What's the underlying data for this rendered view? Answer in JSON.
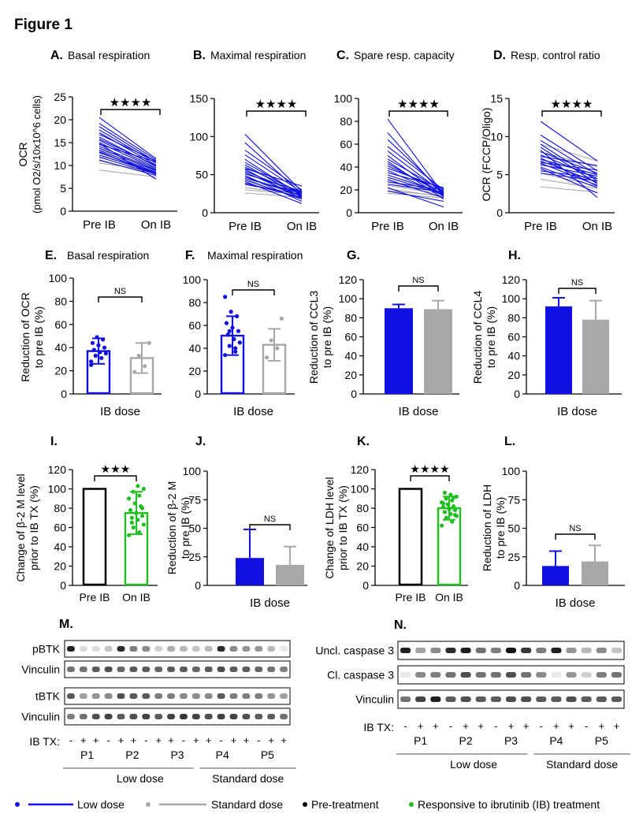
{
  "figure_title": "Figure 1",
  "colors": {
    "low": "#1010e0",
    "standard": "#a8a8a8",
    "black": "#000000",
    "green": "#1fbf1f"
  },
  "chart_data": [
    {
      "panel": "A.",
      "title": "Basal respiration",
      "type": "line",
      "ylabel_line1": "OCR",
      "ylabel_line2": "(pmol O2/s/10x10^6 cells)",
      "ticks": [
        "0",
        "5",
        "10",
        "15",
        "20",
        "25"
      ],
      "ylim": [
        0,
        25
      ],
      "categories": [
        "Pre IB",
        "On IB"
      ],
      "sig": "★★★★",
      "low": [
        [
          20.5,
          11.5
        ],
        [
          19.2,
          11.2
        ],
        [
          18.5,
          10.8
        ],
        [
          17.8,
          10.5
        ],
        [
          17.2,
          10.1
        ],
        [
          16.8,
          11.0
        ],
        [
          16.2,
          9.8
        ],
        [
          15.8,
          10.0
        ],
        [
          15.5,
          9.5
        ],
        [
          15.0,
          9.2
        ],
        [
          14.6,
          10.8
        ],
        [
          14.2,
          9.0
        ],
        [
          13.8,
          8.8
        ],
        [
          13.3,
          8.5
        ],
        [
          12.8,
          8.4
        ],
        [
          12.3,
          8.3
        ],
        [
          11.8,
          8.1
        ],
        [
          11.2,
          7.8
        ],
        [
          14.8,
          7.0
        ],
        [
          13.0,
          8.0
        ]
      ],
      "standard": [
        [
          9.0,
          7.5
        ],
        [
          10.5,
          8.8
        ],
        [
          12.0,
          9.2
        ],
        [
          13.5,
          9.5
        ],
        [
          11.0,
          8.2
        ]
      ]
    },
    {
      "panel": "B.",
      "title": "Maximal respiration",
      "type": "line",
      "ticks": [
        "0",
        "50",
        "100",
        "150"
      ],
      "ylim": [
        0,
        150
      ],
      "categories": [
        "Pre IB",
        "On IB"
      ],
      "sig": "★★★★",
      "low": [
        [
          103,
          28
        ],
        [
          92,
          25
        ],
        [
          82,
          30
        ],
        [
          76,
          27
        ],
        [
          70,
          22
        ],
        [
          66,
          24
        ],
        [
          63,
          20
        ],
        [
          60,
          26
        ],
        [
          57,
          18
        ],
        [
          55,
          24
        ],
        [
          53,
          21
        ],
        [
          51,
          28
        ],
        [
          49,
          15
        ],
        [
          47,
          22
        ],
        [
          45,
          26
        ],
        [
          43,
          18
        ],
        [
          41,
          12
        ],
        [
          39,
          20
        ],
        [
          37,
          24
        ],
        [
          58,
          35
        ]
      ],
      "standard": [
        [
          43,
          25
        ],
        [
          33,
          23
        ],
        [
          26,
          20
        ],
        [
          30,
          24
        ],
        [
          38,
          23
        ]
      ]
    },
    {
      "panel": "C.",
      "title": "Spare resp. capacity",
      "type": "line",
      "ticks": [
        "0",
        "20",
        "40",
        "60",
        "80",
        "100"
      ],
      "ylim": [
        0,
        100
      ],
      "categories": [
        "Pre IB",
        "On IB"
      ],
      "sig": "★★★★",
      "low": [
        [
          82,
          16
        ],
        [
          70,
          15
        ],
        [
          64,
          18
        ],
        [
          58,
          20
        ],
        [
          54,
          17
        ],
        [
          50,
          14
        ],
        [
          47,
          19
        ],
        [
          45,
          12
        ],
        [
          43,
          16
        ],
        [
          41,
          18
        ],
        [
          39,
          21
        ],
        [
          37,
          15
        ],
        [
          35,
          22
        ],
        [
          33,
          17
        ],
        [
          31,
          16
        ],
        [
          29,
          13
        ],
        [
          27,
          20
        ],
        [
          25,
          18
        ],
        [
          22,
          5
        ],
        [
          19,
          10
        ]
      ],
      "standard": [
        [
          19,
          15
        ],
        [
          21,
          14
        ],
        [
          17,
          13
        ],
        [
          24,
          16
        ],
        [
          27,
          17
        ]
      ]
    },
    {
      "panel": "D.",
      "title": "Resp. control ratio",
      "type": "line",
      "ylabel_line1": "OCR (FCCP/Oligo)",
      "ticks": [
        "0",
        "5",
        "10",
        "15"
      ],
      "ylim": [
        0,
        15
      ],
      "categories": [
        "Pre IB",
        "On IB"
      ],
      "sig": "★★★★",
      "low": [
        [
          12.0,
          6.8
        ],
        [
          10.2,
          5.5
        ],
        [
          9.5,
          5.0
        ],
        [
          9.0,
          4.2
        ],
        [
          8.6,
          3.8
        ],
        [
          8.2,
          2.0
        ],
        [
          8.0,
          5.2
        ],
        [
          7.6,
          4.5
        ],
        [
          7.2,
          3.5
        ],
        [
          7.0,
          5.0
        ],
        [
          6.8,
          4.0
        ],
        [
          6.5,
          3.6
        ],
        [
          6.3,
          4.8
        ],
        [
          6.0,
          3.3
        ],
        [
          5.8,
          2.6
        ],
        [
          5.5,
          4.5
        ],
        [
          7.4,
          6.2
        ],
        [
          6.6,
          5.6
        ],
        [
          5.2,
          4.2
        ]
      ],
      "standard": [
        [
          3.4,
          2.7
        ],
        [
          4.4,
          3.2
        ],
        [
          5.2,
          3.5
        ],
        [
          8.0,
          6.0
        ],
        [
          9.0,
          6.8
        ]
      ]
    },
    {
      "panel": "E.",
      "title": "Basal respiration",
      "type": "bar",
      "ylabel_line1": "Reduction of OCR",
      "ylabel_line2": "to pre IB (%)",
      "ticks": [
        "0",
        "20",
        "40",
        "60",
        "80",
        "100"
      ],
      "ylim": [
        0,
        100
      ],
      "xlabel": "IB dose",
      "sig": "NS",
      "bars": [
        {
          "group": "low",
          "value": 37,
          "err": 11,
          "filled": false,
          "points": [
            28,
            31,
            33,
            35,
            36,
            38,
            40,
            42,
            44,
            47,
            49,
            25
          ]
        },
        {
          "group": "standard",
          "value": 31,
          "err": 13,
          "filled": false,
          "points": [
            19,
            24,
            33,
            44
          ]
        }
      ]
    },
    {
      "panel": "F.",
      "title": "Maximal respiration",
      "type": "bar",
      "ticks": [
        "0",
        "20",
        "40",
        "60",
        "80",
        "100"
      ],
      "ylim": [
        0,
        100
      ],
      "xlabel": "IB dose",
      "sig": "NS",
      "bars": [
        {
          "group": "low",
          "value": 51,
          "err": 17,
          "filled": false,
          "points": [
            34,
            37,
            42,
            45,
            48,
            52,
            55,
            58,
            62,
            68,
            72,
            85,
            40,
            55
          ]
        },
        {
          "group": "standard",
          "value": 43,
          "err": 14,
          "filled": false,
          "points": [
            32,
            40,
            47,
            66
          ]
        }
      ]
    },
    {
      "panel": "G.",
      "title": "",
      "type": "bar",
      "ylabel_line1": "Reduction of CCL3",
      "ylabel_line2": "to pre IB (%)",
      "ticks": [
        "0",
        "20",
        "40",
        "60",
        "80",
        "100",
        "120"
      ],
      "ylim": [
        0,
        120
      ],
      "xlabel": "IB dose",
      "sig": "NS",
      "bars": [
        {
          "group": "low",
          "value": 90,
          "err": 4,
          "filled": true,
          "points": []
        },
        {
          "group": "standard",
          "value": 89,
          "err": 9,
          "filled": true,
          "points": []
        }
      ]
    },
    {
      "panel": "H.",
      "title": "",
      "type": "bar",
      "ylabel_line1": "Reduction of CCL4",
      "ylabel_line2": "to pre IB (%)",
      "ticks": [
        "0",
        "20",
        "40",
        "60",
        "80",
        "100",
        "120"
      ],
      "ylim": [
        0,
        120
      ],
      "xlabel": "IB dose",
      "sig": "NS",
      "bars": [
        {
          "group": "low",
          "value": 92,
          "err": 9,
          "filled": true,
          "points": []
        },
        {
          "group": "standard",
          "value": 78,
          "err": 20,
          "filled": true,
          "points": []
        }
      ]
    },
    {
      "panel": "I.",
      "title": "",
      "type": "bar",
      "ylabel_line1": "Change of β-2 M level",
      "ylabel_line2": "prior to IB TX (%)",
      "ticks": [
        "0",
        "20",
        "40",
        "60",
        "80",
        "100",
        "120"
      ],
      "ylim": [
        0,
        120
      ],
      "xlabel": "",
      "categories": [
        "Pre IB",
        "On IB"
      ],
      "sig": "★★★",
      "bars": [
        {
          "group": "black",
          "value": 100,
          "err": 0,
          "filled": false,
          "points": []
        },
        {
          "group": "green",
          "value": 75,
          "err": 22,
          "filled": false,
          "points": [
            52,
            55,
            60,
            63,
            68,
            70,
            72,
            75,
            78,
            82,
            85,
            90,
            93,
            97,
            100,
            103,
            65,
            80
          ]
        }
      ]
    },
    {
      "panel": "J.",
      "title": "",
      "type": "bar",
      "ylabel_line1": "Reduction of β-2 M",
      "ylabel_line2": "to pre IB (%)",
      "ticks": [
        "0",
        "25",
        "50",
        "75",
        "100"
      ],
      "ylim": [
        0,
        100
      ],
      "xlabel": "IB dose",
      "sig": "NS",
      "bars": [
        {
          "group": "low",
          "value": 24,
          "err": 25,
          "filled": true,
          "points": []
        },
        {
          "group": "standard",
          "value": 18,
          "err": 16,
          "filled": true,
          "points": []
        }
      ]
    },
    {
      "panel": "K.",
      "title": "",
      "type": "bar",
      "ylabel_line1": "Change of LDH level",
      "ylabel_line2": "prior to IB TX (%)",
      "ticks": [
        "0",
        "20",
        "40",
        "60",
        "80",
        "100",
        "120"
      ],
      "ylim": [
        0,
        120
      ],
      "xlabel": "",
      "categories": [
        "Pre IB",
        "On IB"
      ],
      "sig": "★★★★",
      "bars": [
        {
          "group": "black",
          "value": 100,
          "err": 0,
          "filled": false,
          "points": []
        },
        {
          "group": "green",
          "value": 80,
          "err": 12,
          "filled": false,
          "points": [
            62,
            66,
            70,
            72,
            74,
            76,
            78,
            80,
            81,
            82,
            84,
            86,
            88,
            90,
            92,
            94,
            96,
            73,
            79,
            85,
            91
          ]
        }
      ]
    },
    {
      "panel": "L.",
      "title": "",
      "type": "bar",
      "ylabel_line1": "Reduction of LDH",
      "ylabel_line2": "to pre IB (%)",
      "ticks": [
        "0",
        "25",
        "50",
        "75",
        "100"
      ],
      "ylim": [
        0,
        100
      ],
      "xlabel": "IB dose",
      "sig": "NS",
      "bars": [
        {
          "group": "low",
          "value": 17,
          "err": 13,
          "filled": true,
          "points": []
        },
        {
          "group": "standard",
          "value": 21,
          "err": 14,
          "filled": true,
          "points": []
        }
      ]
    }
  ],
  "blots": {
    "M": {
      "panel": "M.",
      "rows": [
        {
          "label": "pBTK",
          "intens": [
            0.95,
            0.15,
            0.15,
            0.25,
            0.9,
            0.55,
            0.5,
            0.2,
            0.35,
            0.3,
            0.25,
            0.3,
            0.9,
            0.5,
            0.45,
            0.45,
            0.3,
            0.1
          ]
        },
        {
          "label": "Vinculin",
          "intens": [
            0.6,
            0.6,
            0.7,
            0.75,
            0.65,
            0.7,
            0.7,
            0.65,
            0.7,
            0.7,
            0.65,
            0.7,
            0.75,
            0.7,
            0.7,
            0.65,
            0.6,
            0.55
          ]
        },
        {
          "label": "tBTK",
          "intens": [
            0.7,
            0.4,
            0.45,
            0.5,
            0.75,
            0.7,
            0.7,
            0.55,
            0.55,
            0.5,
            0.5,
            0.5,
            0.7,
            0.55,
            0.55,
            0.55,
            0.45,
            0.4
          ]
        },
        {
          "label": "Vinculin",
          "intens": [
            0.55,
            0.6,
            0.75,
            0.8,
            0.7,
            0.75,
            0.8,
            0.7,
            0.8,
            0.85,
            0.8,
            0.75,
            0.8,
            0.8,
            0.75,
            0.7,
            0.7,
            0.6
          ]
        }
      ],
      "tx_label": "IB TX:",
      "tx": [
        "-",
        "+",
        "+",
        "-",
        "+",
        "+",
        "-",
        "+",
        "+",
        "-",
        "+",
        "+",
        "-",
        "+",
        "+",
        "-",
        "+",
        "+"
      ],
      "patients": [
        "P1",
        "P2",
        "P3",
        "P4",
        "P5"
      ],
      "groups": [
        "Low dose",
        "Standard dose"
      ]
    },
    "N": {
      "panel": "N.",
      "rows": [
        {
          "label": "Uncl. caspase 3",
          "intens": [
            0.95,
            0.4,
            0.5,
            0.9,
            0.95,
            0.6,
            0.55,
            1.0,
            0.85,
            0.55,
            0.95,
            0.45,
            0.3,
            0.5,
            0.25
          ]
        },
        {
          "label": "Cl. caspase 3",
          "intens": [
            0.1,
            0.5,
            0.55,
            0.6,
            0.75,
            0.6,
            0.6,
            0.75,
            0.6,
            0.5,
            0.1,
            0.45,
            0.2,
            0.55,
            0.6
          ]
        },
        {
          "label": "Vinculin",
          "intens": [
            0.6,
            0.8,
            0.95,
            0.7,
            0.75,
            0.7,
            0.7,
            0.75,
            0.75,
            0.7,
            0.7,
            0.75,
            0.7,
            0.7,
            0.7
          ]
        }
      ],
      "tx_label": "IB TX:",
      "tx": [
        "-",
        "+",
        "+",
        "-",
        "+",
        "+",
        "-",
        "+",
        "+",
        "-",
        "+",
        "+",
        "-",
        "+",
        "+"
      ],
      "patients": [
        "P1",
        "P2",
        "P3",
        "P4",
        "P5"
      ],
      "groups": [
        "Low dose",
        "Standard dose"
      ]
    }
  },
  "legend": {
    "low": "Low dose",
    "standard": "Standard dose",
    "pre": "Pre-treatment",
    "resp": "Responsive to ibrutinib (IB) treatment"
  }
}
